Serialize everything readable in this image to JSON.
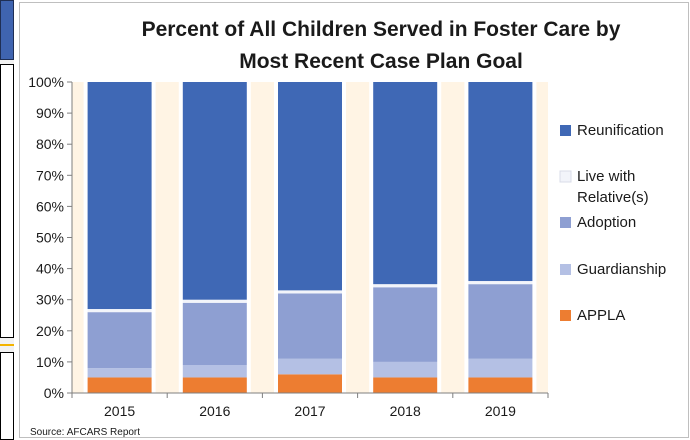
{
  "chart_data": {
    "type": "bar",
    "stacked": true,
    "title_lines": [
      "Percent of All Children Served in Foster Care by",
      "Most Recent Case Plan Goal"
    ],
    "xlabel": "",
    "ylabel": "",
    "categories": [
      "2015",
      "2016",
      "2017",
      "2018",
      "2019"
    ],
    "ylim": [
      0,
      100
    ],
    "yticks": [
      0,
      10,
      20,
      30,
      40,
      50,
      60,
      70,
      80,
      90,
      100
    ],
    "ytick_labels": [
      "0%",
      "10%",
      "20%",
      "30%",
      "40%",
      "50%",
      "60%",
      "70%",
      "80%",
      "90%",
      "100%"
    ],
    "series": [
      {
        "name": "APPLA",
        "color": "#ed7d31",
        "values": [
          5,
          5,
          6,
          5,
          5
        ]
      },
      {
        "name": "Guardianship",
        "color": "#b4c0e4",
        "values": [
          3,
          4,
          5,
          5,
          6
        ]
      },
      {
        "name": "Adoption",
        "color": "#8e9fd2",
        "values": [
          18,
          20,
          21,
          24,
          24
        ]
      },
      {
        "name": "Live with Relative(s)",
        "color": "#f2f4fa",
        "values": [
          1,
          1,
          1,
          1,
          1
        ]
      },
      {
        "name": "Reunification",
        "color": "#3f68b5",
        "values": [
          73,
          70,
          67,
          65,
          64
        ]
      }
    ],
    "legend_order": [
      "Reunification",
      "Live with Relative(s)",
      "Adoption",
      "Guardianship",
      "APPLA"
    ],
    "legend_placement": "right",
    "grid": false,
    "plot_background_stripes": "#fff4e4",
    "source": "Source: AFCARS Report"
  }
}
